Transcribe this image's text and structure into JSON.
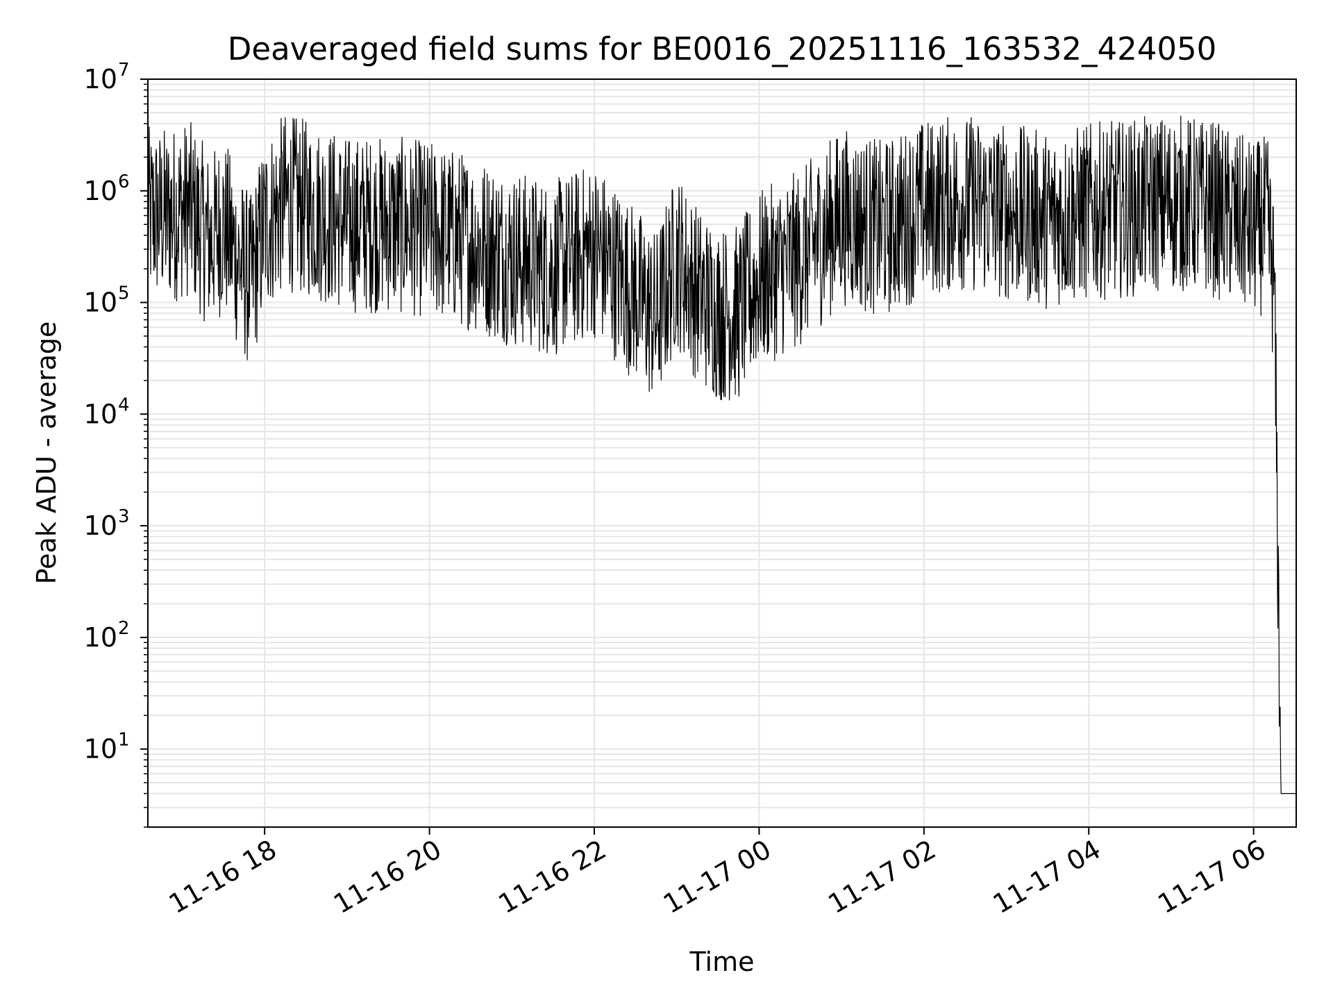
{
  "chart_data": {
    "type": "line",
    "title": "Deaveraged field sums for BE0016_20251116_163532_424050",
    "xlabel": "Time",
    "ylabel": "Peak ADU - average",
    "y_scale": "log",
    "ylim": [
      2,
      10000000
    ],
    "xlim": [
      "2025-11-16 16:35",
      "2025-11-17 06:31"
    ],
    "grid": true,
    "line_color": "#000000",
    "grid_color": "#e5e5e5",
    "x_ticks": [
      {
        "t": "2025-11-16 18:00",
        "label": "11-16 18"
      },
      {
        "t": "2025-11-16 20:00",
        "label": "11-16 20"
      },
      {
        "t": "2025-11-16 22:00",
        "label": "11-16 22"
      },
      {
        "t": "2025-11-17 00:00",
        "label": "11-17 00"
      },
      {
        "t": "2025-11-17 02:00",
        "label": "11-17 02"
      },
      {
        "t": "2025-11-17 04:00",
        "label": "11-17 04"
      },
      {
        "t": "2025-11-17 06:00",
        "label": "11-17 06"
      }
    ],
    "y_ticks": [
      {
        "value": 10,
        "base": "10",
        "exp": "1"
      },
      {
        "value": 100,
        "base": "10",
        "exp": "2"
      },
      {
        "value": 1000,
        "base": "10",
        "exp": "3"
      },
      {
        "value": 10000,
        "base": "10",
        "exp": "4"
      },
      {
        "value": 100000,
        "base": "10",
        "exp": "5"
      },
      {
        "value": 1000000,
        "base": "10",
        "exp": "6"
      },
      {
        "value": 10000000,
        "base": "10",
        "exp": "7"
      }
    ],
    "series": [
      {
        "x": [
          "2025-11-16 16:35",
          "2025-11-16 16:50",
          "2025-11-16 17:05",
          "2025-11-16 17:20",
          "2025-11-16 17:30",
          "2025-11-16 17:40",
          "2025-11-16 17:50",
          "2025-11-16 18:00",
          "2025-11-16 18:15",
          "2025-11-16 18:30",
          "2025-11-16 18:45",
          "2025-11-16 19:00",
          "2025-11-16 19:30",
          "2025-11-16 20:00",
          "2025-11-16 20:30",
          "2025-11-16 21:00",
          "2025-11-16 21:30",
          "2025-11-16 22:00",
          "2025-11-16 22:30",
          "2025-11-16 22:45",
          "2025-11-16 23:00",
          "2025-11-16 23:15",
          "2025-11-16 23:30",
          "2025-11-16 23:45",
          "2025-11-17 00:00",
          "2025-11-17 00:30",
          "2025-11-17 01:00",
          "2025-11-17 01:30",
          "2025-11-17 02:00",
          "2025-11-17 02:30",
          "2025-11-17 03:00",
          "2025-11-17 03:30",
          "2025-11-17 04:00",
          "2025-11-17 04:30",
          "2025-11-17 05:00",
          "2025-11-17 05:30",
          "2025-11-17 06:00",
          "2025-11-17 06:10",
          "2025-11-17 06:15",
          "2025-11-17 06:20",
          "2025-11-17 06:31"
        ],
        "values": [
          600000,
          600000,
          700000,
          350000,
          500000,
          250000,
          150000,
          500000,
          800000,
          700000,
          600000,
          500000,
          500000,
          450000,
          350000,
          250000,
          200000,
          300000,
          120000,
          70000,
          250000,
          120000,
          80000,
          80000,
          160000,
          250000,
          600000,
          450000,
          700000,
          800000,
          650000,
          550000,
          650000,
          700000,
          800000,
          700000,
          450000,
          500000,
          150000,
          4,
          4
        ]
      }
    ]
  }
}
